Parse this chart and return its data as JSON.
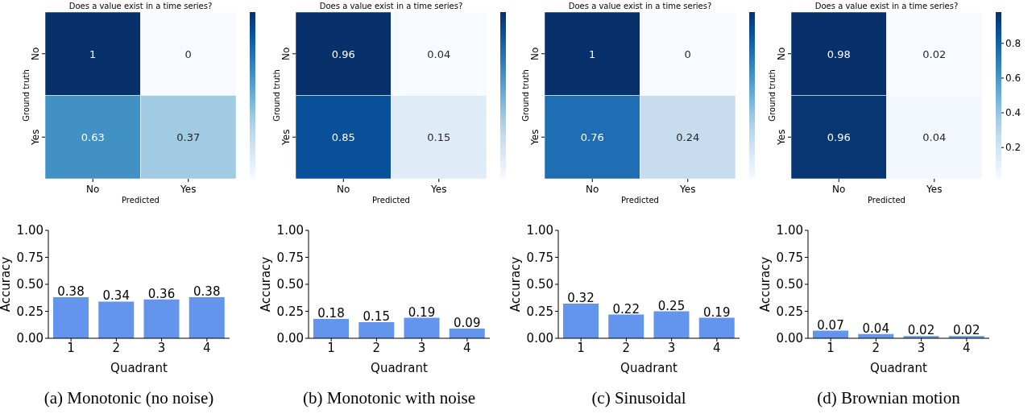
{
  "chart_data": [
    {
      "type": "heatmap",
      "title": "Does a value exist in a time series?",
      "xlabel": "Predicted",
      "ylabel": "Ground truth",
      "categories": [
        "No",
        "Yes"
      ],
      "y_categories": [
        "No",
        "Yes"
      ],
      "cells": [
        [
          1,
          0
        ],
        [
          0.63,
          0.37
        ]
      ],
      "data_labels": true
    },
    {
      "type": "heatmap",
      "title": "Does a value exist in a time series?",
      "xlabel": "Predicted",
      "ylabel": "Ground truth",
      "categories": [
        "No",
        "Yes"
      ],
      "y_categories": [
        "No",
        "Yes"
      ],
      "cells": [
        [
          0.96,
          0.04
        ],
        [
          0.85,
          0.15
        ]
      ],
      "data_labels": true
    },
    {
      "type": "heatmap",
      "title": "Does a value exist in a time series?",
      "xlabel": "Predicted",
      "ylabel": "Ground truth",
      "categories": [
        "No",
        "Yes"
      ],
      "y_categories": [
        "No",
        "Yes"
      ],
      "cells": [
        [
          1,
          0
        ],
        [
          0.76,
          0.24
        ]
      ],
      "data_labels": true
    },
    {
      "type": "heatmap",
      "title": "Does a value exist in a time series?",
      "xlabel": "Predicted",
      "ylabel": "Ground truth",
      "categories": [
        "No",
        "Yes"
      ],
      "y_categories": [
        "No",
        "Yes"
      ],
      "cells": [
        [
          0.98,
          0.02
        ],
        [
          0.96,
          0.04
        ]
      ],
      "data_labels": true,
      "clim": [
        0.02,
        0.98
      ],
      "cticks": [
        {
          "value": 0.2,
          "label": "0.2"
        },
        {
          "value": 0.4,
          "label": "0.4"
        },
        {
          "value": 0.6,
          "label": "0.6"
        },
        {
          "value": 0.8,
          "label": "0.8"
        }
      ]
    },
    {
      "type": "bar",
      "xlabel": "Quadrant",
      "ylabel": "Accuracy",
      "categories": [
        "1",
        "2",
        "3",
        "4"
      ],
      "values": [
        0.38,
        0.34,
        0.36,
        0.38
      ],
      "color": "#6495ed",
      "ylim": [
        0,
        1
      ],
      "yticks": [
        {
          "value": 0,
          "label": "0.00"
        },
        {
          "value": 0.25,
          "label": "0.25"
        },
        {
          "value": 0.5,
          "label": "0.50"
        },
        {
          "value": 0.75,
          "label": "0.75"
        },
        {
          "value": 1,
          "label": "1.00"
        }
      ],
      "data_labels": true,
      "annotations": [
        "(a) Monotonic (no noise)"
      ]
    },
    {
      "type": "bar",
      "xlabel": "Quadrant",
      "ylabel": "Accuracy",
      "categories": [
        "1",
        "2",
        "3",
        "4"
      ],
      "values": [
        0.18,
        0.15,
        0.19,
        0.09
      ],
      "color": "#6495ed",
      "ylim": [
        0,
        1
      ],
      "yticks": [
        {
          "value": 0,
          "label": "0.00"
        },
        {
          "value": 0.25,
          "label": "0.25"
        },
        {
          "value": 0.5,
          "label": "0.50"
        },
        {
          "value": 0.75,
          "label": "0.75"
        },
        {
          "value": 1,
          "label": "1.00"
        }
      ],
      "data_labels": true,
      "annotations": [
        "(b) Monotonic with noise"
      ]
    },
    {
      "type": "bar",
      "xlabel": "Quadrant",
      "ylabel": "Accuracy",
      "categories": [
        "1",
        "2",
        "3",
        "4"
      ],
      "values": [
        0.32,
        0.22,
        0.25,
        0.19
      ],
      "color": "#6495ed",
      "ylim": [
        0,
        1
      ],
      "yticks": [
        {
          "value": 0,
          "label": "0.00"
        },
        {
          "value": 0.25,
          "label": "0.25"
        },
        {
          "value": 0.5,
          "label": "0.50"
        },
        {
          "value": 0.75,
          "label": "0.75"
        },
        {
          "value": 1,
          "label": "1.00"
        }
      ],
      "data_labels": true,
      "annotations": [
        "(c) Sinusoidal"
      ]
    },
    {
      "type": "bar",
      "xlabel": "Quadrant",
      "ylabel": "Accuracy",
      "categories": [
        "1",
        "2",
        "3",
        "4"
      ],
      "values": [
        0.07,
        0.04,
        0.02,
        0.02
      ],
      "color": "#6495ed",
      "ylim": [
        0,
        1
      ],
      "yticks": [
        {
          "value": 0,
          "label": "0.00"
        },
        {
          "value": 0.25,
          "label": "0.25"
        },
        {
          "value": 0.5,
          "label": "0.50"
        },
        {
          "value": 0.75,
          "label": "0.75"
        },
        {
          "value": 1,
          "label": "1.00"
        }
      ],
      "data_labels": true,
      "annotations": [
        "(d) Brownian motion"
      ]
    }
  ]
}
